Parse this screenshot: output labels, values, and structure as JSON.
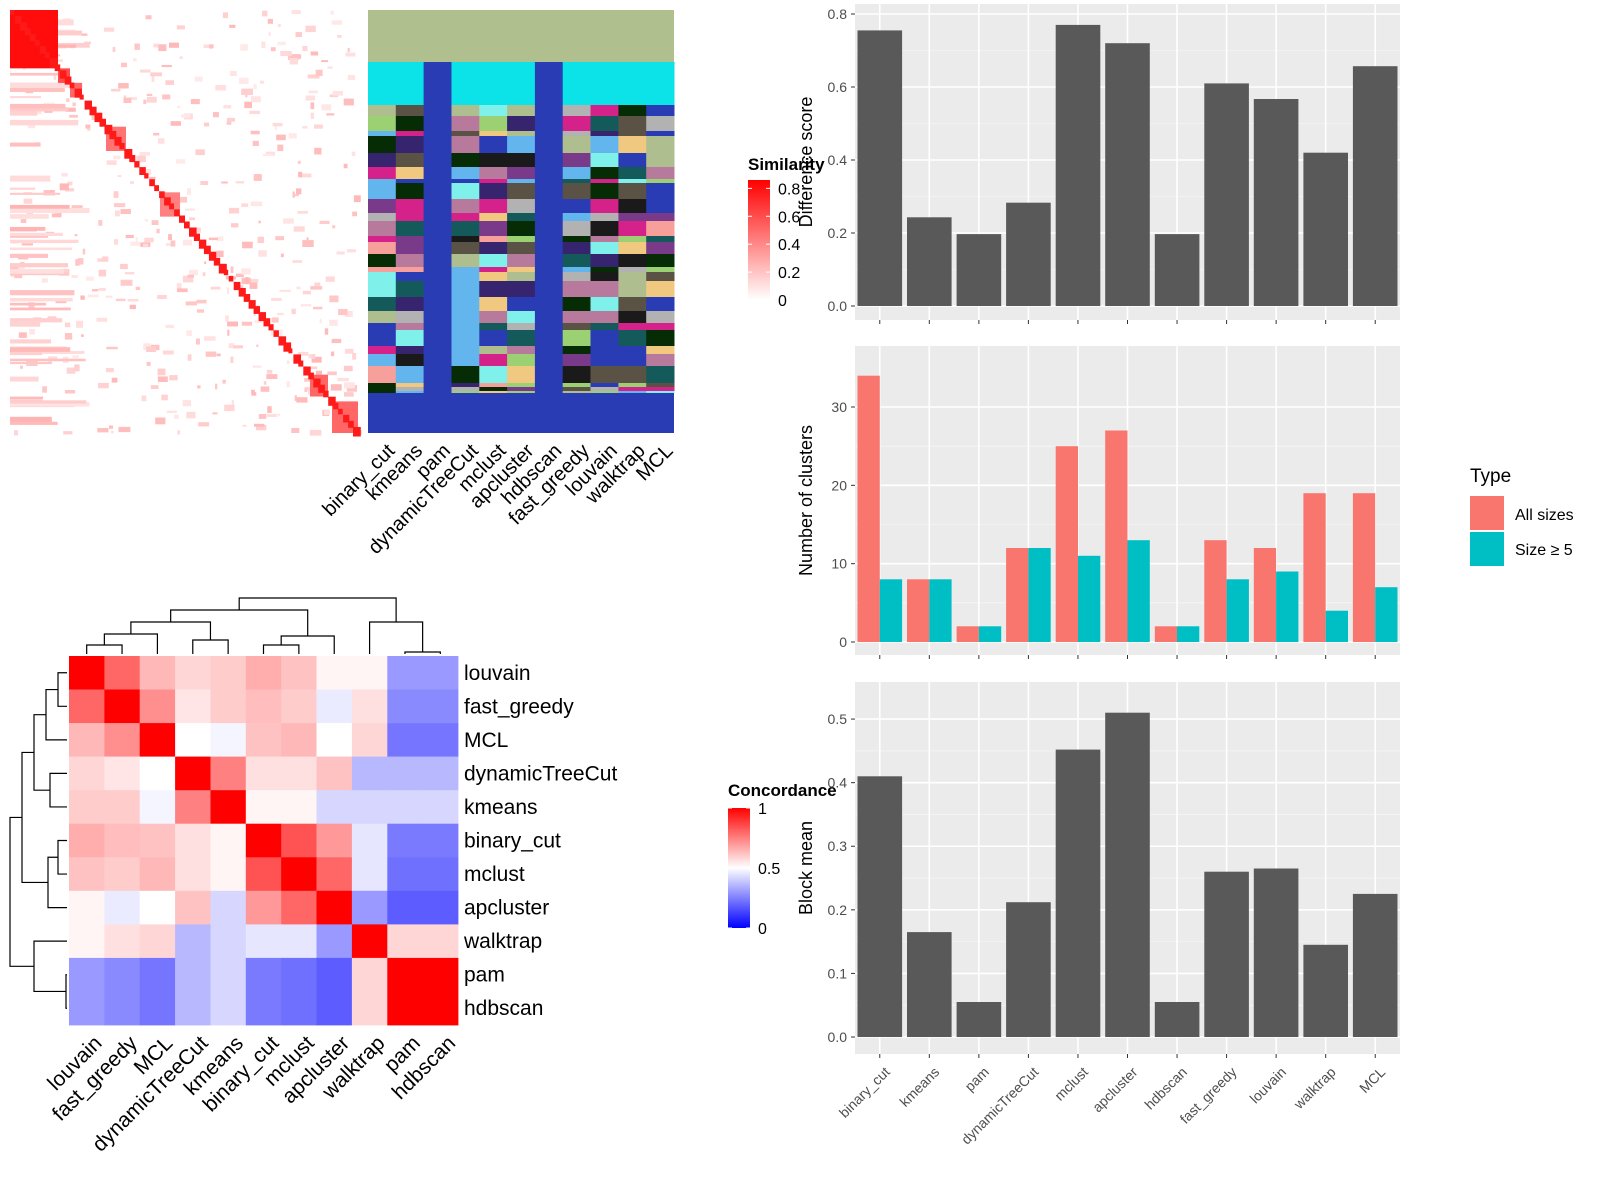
{
  "methods_order": [
    "binary_cut",
    "kmeans",
    "pam",
    "dynamicTreeCut",
    "mclust",
    "apcluster",
    "hdbscan",
    "fast_greedy",
    "louvain",
    "walktrap",
    "MCL"
  ],
  "similarity_legend": {
    "title": "Similarity",
    "ticks": [
      "0",
      "0.2",
      "0.4",
      "0.6",
      "0.8"
    ],
    "tick_values": [
      0,
      0.2,
      0.4,
      0.6,
      0.8
    ]
  },
  "concordance_legend": {
    "title": "Concordance",
    "ticks": [
      "0",
      "0.5",
      "1"
    ],
    "tick_values": [
      0,
      0.5,
      1
    ]
  },
  "colors": {
    "sim_high": "#ff0000",
    "sim_low": "#ffffff",
    "conc_high": "#ff0000",
    "conc_mid": "#ffffff",
    "conc_low": "#0000ff",
    "bar_gray": "#595959",
    "all_sizes": "#f8766d",
    "size5": "#00bfc4",
    "panel_bg": "#ebebeb",
    "grid": "#ffffff"
  },
  "concordance": {
    "order": [
      "louvain",
      "fast_greedy",
      "MCL",
      "dynamicTreeCut",
      "kmeans",
      "binary_cut",
      "mclust",
      "apcluster",
      "walktrap",
      "pam",
      "hdbscan"
    ],
    "matrix": [
      [
        1.0,
        0.8,
        0.64,
        0.58,
        0.6,
        0.66,
        0.62,
        0.52,
        0.52,
        0.3,
        0.3
      ],
      [
        0.8,
        1.0,
        0.72,
        0.55,
        0.6,
        0.63,
        0.6,
        0.46,
        0.56,
        0.27,
        0.27
      ],
      [
        0.64,
        0.72,
        1.0,
        0.5,
        0.48,
        0.62,
        0.64,
        0.5,
        0.58,
        0.23,
        0.23
      ],
      [
        0.58,
        0.55,
        0.5,
        1.0,
        0.75,
        0.56,
        0.56,
        0.62,
        0.36,
        0.36,
        0.36
      ],
      [
        0.6,
        0.6,
        0.48,
        0.75,
        1.0,
        0.52,
        0.52,
        0.42,
        0.42,
        0.42,
        0.42
      ],
      [
        0.66,
        0.63,
        0.62,
        0.56,
        0.52,
        1.0,
        0.84,
        0.7,
        0.45,
        0.24,
        0.24
      ],
      [
        0.62,
        0.6,
        0.64,
        0.56,
        0.52,
        0.84,
        1.0,
        0.8,
        0.45,
        0.22,
        0.22
      ],
      [
        0.52,
        0.46,
        0.5,
        0.62,
        0.42,
        0.7,
        0.8,
        1.0,
        0.3,
        0.18,
        0.18
      ],
      [
        0.52,
        0.56,
        0.58,
        0.36,
        0.42,
        0.45,
        0.45,
        0.3,
        1.0,
        0.58,
        0.58
      ],
      [
        0.3,
        0.27,
        0.23,
        0.36,
        0.42,
        0.24,
        0.22,
        0.18,
        0.58,
        1.0,
        1.0
      ],
      [
        0.3,
        0.27,
        0.23,
        0.36,
        0.42,
        0.24,
        0.22,
        0.18,
        0.58,
        1.0,
        1.0
      ]
    ]
  },
  "chart_data": [
    {
      "type": "heatmap",
      "title": "",
      "description": "term similarity heatmap (diagonal blocks) with cluster-assignment annotation columns",
      "columns": [
        "binary_cut",
        "kmeans",
        "pam",
        "dynamicTreeCut",
        "mclust",
        "apcluster",
        "hdbscan",
        "fast_greedy",
        "louvain",
        "walktrap",
        "MCL"
      ],
      "legend": {
        "title": "Similarity",
        "range": [
          0,
          0.8
        ]
      }
    },
    {
      "type": "heatmap",
      "title": "",
      "description": "pairwise concordance between clustering methods",
      "rows": [
        "louvain",
        "fast_greedy",
        "MCL",
        "dynamicTreeCut",
        "kmeans",
        "binary_cut",
        "mclust",
        "apcluster",
        "walktrap",
        "pam",
        "hdbscan"
      ],
      "columns": [
        "louvain",
        "fast_greedy",
        "MCL",
        "dynamicTreeCut",
        "kmeans",
        "binary_cut",
        "mclust",
        "apcluster",
        "walktrap",
        "pam",
        "hdbscan"
      ],
      "legend": {
        "title": "Concordance",
        "range": [
          0,
          1
        ]
      }
    },
    {
      "type": "bar",
      "categories": [
        "binary_cut",
        "kmeans",
        "pam",
        "dynamicTreeCut",
        "mclust",
        "apcluster",
        "hdbscan",
        "fast_greedy",
        "louvain",
        "walktrap",
        "MCL"
      ],
      "values": [
        0.755,
        0.243,
        0.197,
        0.283,
        0.77,
        0.72,
        0.197,
        0.61,
        0.567,
        0.42,
        0.657
      ],
      "title": "",
      "xlabel": "",
      "ylabel": "Difference score",
      "ylim": [
        0,
        0.8
      ],
      "yticks": [
        "0.0",
        "0.2",
        "0.4",
        "0.6",
        "0.8"
      ],
      "ytick_values": [
        0,
        0.2,
        0.4,
        0.6,
        0.8
      ],
      "grid": true
    },
    {
      "type": "bar",
      "categories": [
        "binary_cut",
        "kmeans",
        "pam",
        "dynamicTreeCut",
        "mclust",
        "apcluster",
        "hdbscan",
        "fast_greedy",
        "louvain",
        "walktrap",
        "MCL"
      ],
      "series": [
        {
          "name": "All sizes",
          "values": [
            34,
            8,
            2,
            12,
            25,
            27,
            2,
            13,
            12,
            19,
            19
          ]
        },
        {
          "name": "Size ≥ 5",
          "values": [
            8,
            8,
            2,
            12,
            11,
            13,
            2,
            8,
            9,
            4,
            7
          ]
        }
      ],
      "title": "",
      "xlabel": "",
      "ylabel": "Number of clusters",
      "ylim": [
        0,
        36
      ],
      "yticks": [
        "0",
        "10",
        "20",
        "30"
      ],
      "ytick_values": [
        0,
        10,
        20,
        30
      ],
      "legend": {
        "title": "Type",
        "position": "right"
      },
      "grid": true
    },
    {
      "type": "bar",
      "categories": [
        "binary_cut",
        "kmeans",
        "pam",
        "dynamicTreeCut",
        "mclust",
        "apcluster",
        "hdbscan",
        "fast_greedy",
        "louvain",
        "walktrap",
        "MCL"
      ],
      "values": [
        0.41,
        0.165,
        0.055,
        0.212,
        0.452,
        0.51,
        0.055,
        0.26,
        0.265,
        0.145,
        0.225
      ],
      "title": "",
      "xlabel": "",
      "ylabel": "Block mean",
      "ylim": [
        0,
        0.53
      ],
      "yticks": [
        "0.0",
        "0.1",
        "0.2",
        "0.3",
        "0.4",
        "0.5"
      ],
      "ytick_values": [
        0,
        0.1,
        0.2,
        0.3,
        0.4,
        0.5
      ],
      "grid": true
    }
  ]
}
